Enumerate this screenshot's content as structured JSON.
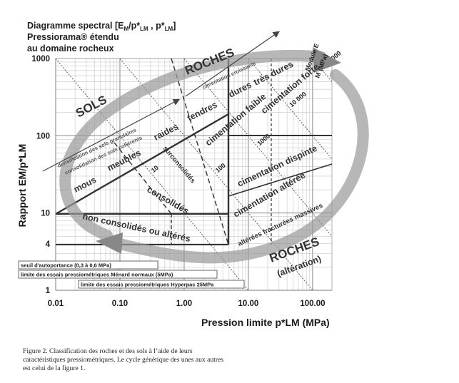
{
  "header": {
    "line1": "Diagramme spectral  [E",
    "line1_sub1": "M",
    "line1_mid": "/p*",
    "line1_sub2": "LM",
    "line1_mid2": " , p*",
    "line1_sub3": "LM",
    "line1_end": "]",
    "line2": "Pressiorama® étendu",
    "line3": "au domaine rocheux"
  },
  "chart_data": {
    "type": "scatter",
    "title": "Diagramme spectral [EM/p*LM , p*LM] Pressiorama® étendu au domaine rocheux",
    "xlabel": "Pression limite p*LM (MPa)",
    "ylabel": "Rapport EM/p*LM",
    "xscale": "log",
    "yscale": "log",
    "xlim": [
      0.01,
      200
    ],
    "ylim": [
      1,
      1000
    ],
    "x_ticks": [
      "0.01",
      "0.10",
      "1.00",
      "10.00",
      "100.00"
    ],
    "y_ticks": [
      "1",
      "4",
      "10",
      "100",
      "1000"
    ],
    "grid": true,
    "modulus_lines": [
      {
        "label": "10",
        "EM": 10
      },
      {
        "label": "100",
        "EM": 100
      },
      {
        "label": "1000",
        "EM": 1000
      },
      {
        "label": "10 000",
        "EM": 10000
      },
      {
        "label": "100 000",
        "EM": 100000
      }
    ],
    "modulus_axis_label": "Module E",
    "modulus_axis_sub": "M",
    "modulus_axis_unit": "(MPa)",
    "zones": {
      "sols": "SOLS",
      "roches": "ROCHES",
      "roches_alt1": "ROCHES",
      "roches_alt2": "(altération)",
      "mous": "mous",
      "meubles": "meubles",
      "raides": "raides",
      "tendres": "tendres",
      "dures": "dures",
      "tres_dures": "très dures",
      "consolides": "consolidés",
      "surconsolides": "surconsolidés",
      "non_consolides": "non consolidés ou altérés",
      "cim_faible": "cimentation faible",
      "cim_forte": "cimentation forte",
      "cim_dispinte": "cimentation dispinte",
      "cim_alteree": "cimentation altérée",
      "alterees": "altérées  fracturées  massives",
      "cim_croissante": "cimentation croissante",
      "densif": "densification des sols granulaires",
      "consol_coh": "consolidation des sols cohérents"
    },
    "reference_lines": [
      {
        "label": "seuil d'autoportance (0,3 à 0,6 MPa)"
      },
      {
        "label": "limite des essais pressiométriques Ménard normaux (5MPa)"
      },
      {
        "label": "limite des essais pressiométriques Hyperpac 25MPa"
      }
    ]
  },
  "caption": "Figure 2. Classification des roches et des sols  à l’aide de leurs caractéristiques pressiométriques. Le cycle génétique des unes aux autres est celui de la figure 1."
}
